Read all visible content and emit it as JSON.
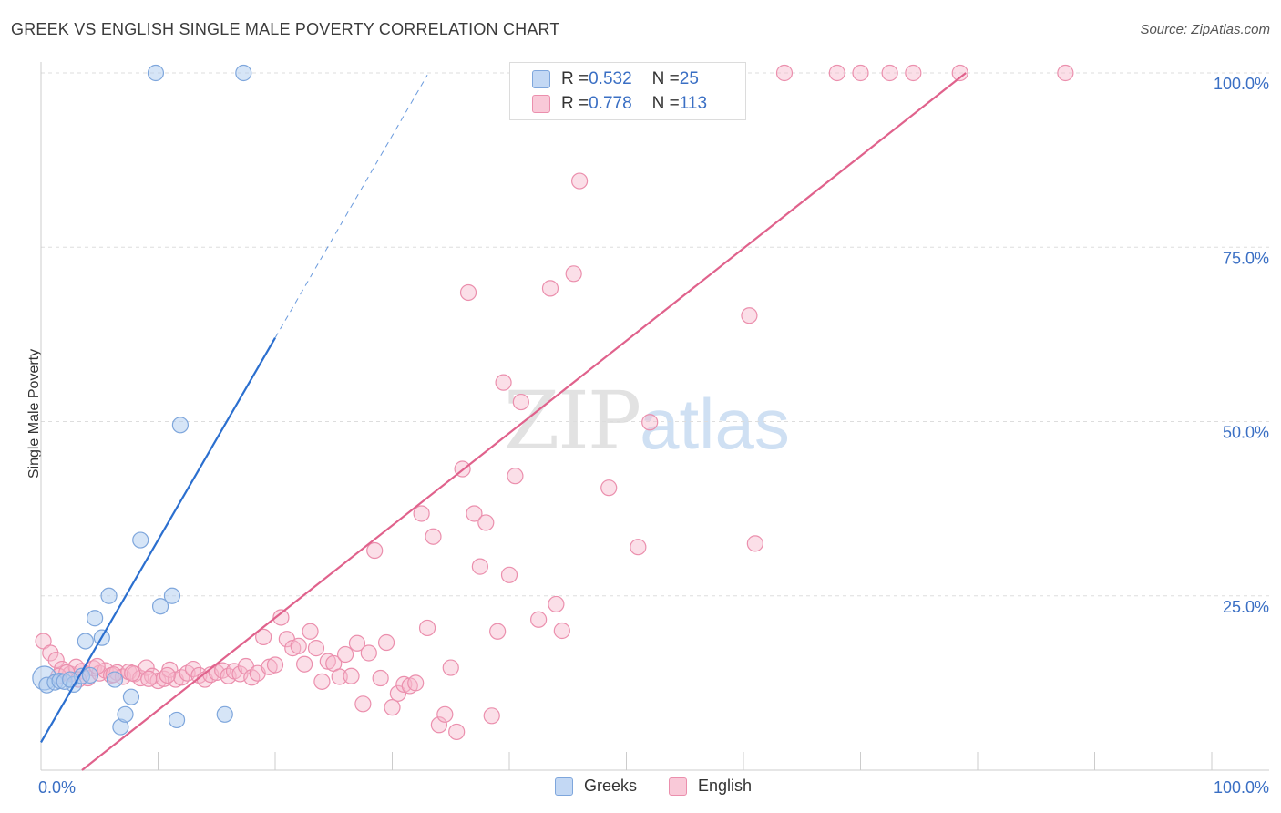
{
  "title": "GREEK VS ENGLISH SINGLE MALE POVERTY CORRELATION CHART",
  "source": "Source: ZipAtlas.com",
  "legend_top": {
    "rows": [
      {
        "r_label": "R = ",
        "r_value": "0.532",
        "n_label": "N = ",
        "n_value": "25"
      },
      {
        "r_label": "R = ",
        "r_value": "0.778",
        "n_label": "N = ",
        "n_value": "113"
      }
    ]
  },
  "legend_bottom": [
    "Greeks",
    "English"
  ],
  "watermark": {
    "zip": "ZIP",
    "atlas": "atlas"
  },
  "colors": {
    "greeks_fill": "#aecbf0",
    "greeks_stroke": "#7ea6dc",
    "greeks_line": "#2b6fcf",
    "english_fill": "#f6b7cb",
    "english_stroke": "#eb8fad",
    "english_line": "#e0628c",
    "tick_label": "#3a6fc4",
    "grid": "#dddddd"
  },
  "chart_data": {
    "type": "scatter",
    "title": "GREEK VS ENGLISH SINGLE MALE POVERTY CORRELATION CHART",
    "xlabel": "",
    "ylabel": "Single Male Poverty",
    "xlim": [
      0,
      100
    ],
    "ylim": [
      0,
      100
    ],
    "x_tick_labels": [
      "0.0%",
      "100.0%"
    ],
    "y_tick_labels": [
      "25.0%",
      "50.0%",
      "75.0%",
      "100.0%"
    ],
    "y_ticks": [
      25,
      50,
      75,
      100
    ],
    "grid": true,
    "legend_placement": "top-center and bottom-center",
    "series": [
      {
        "name": "Greeks",
        "R": 0.532,
        "N": 25,
        "trend": {
          "x1": 0,
          "y1": 4,
          "x2": 20,
          "y2": 62,
          "dash_to_x": 33
        },
        "points": [
          [
            0.3,
            13.2
          ],
          [
            0.5,
            12.2
          ],
          [
            1.2,
            12.6
          ],
          [
            1.6,
            12.8
          ],
          [
            2.0,
            12.7
          ],
          [
            2.8,
            12.3
          ],
          [
            3.5,
            13.5
          ],
          [
            3.8,
            18.5
          ],
          [
            4.2,
            13.6
          ],
          [
            4.6,
            21.8
          ],
          [
            5.2,
            19.0
          ],
          [
            5.8,
            25.0
          ],
          [
            6.3,
            13.0
          ],
          [
            6.8,
            6.2
          ],
          [
            7.2,
            8.0
          ],
          [
            7.7,
            10.5
          ],
          [
            8.5,
            33.0
          ],
          [
            9.8,
            100
          ],
          [
            10.2,
            23.5
          ],
          [
            11.2,
            25.0
          ],
          [
            11.6,
            7.2
          ],
          [
            11.9,
            49.5
          ],
          [
            15.7,
            8.0
          ],
          [
            17.3,
            100
          ],
          [
            2.5,
            13.0
          ]
        ]
      },
      {
        "name": "English",
        "R": 0.778,
        "N": 113,
        "trend": {
          "x1": 3.5,
          "y1": 0,
          "x2": 79,
          "y2": 100
        },
        "points": [
          [
            0.2,
            18.5
          ],
          [
            0.8,
            16.8
          ],
          [
            1.3,
            15.8
          ],
          [
            1.8,
            14.5
          ],
          [
            2.5,
            13.8
          ],
          [
            3.0,
            14.8
          ],
          [
            3.5,
            14.2
          ],
          [
            4.0,
            13.2
          ],
          [
            4.5,
            14.6
          ],
          [
            5.0,
            13.9
          ],
          [
            5.5,
            14.3
          ],
          [
            6.0,
            13.6
          ],
          [
            6.5,
            14.0
          ],
          [
            7.0,
            13.4
          ],
          [
            7.5,
            14.1
          ],
          [
            8.0,
            13.8
          ],
          [
            8.5,
            13.2
          ],
          [
            9.0,
            14.7
          ],
          [
            9.5,
            13.5
          ],
          [
            10.0,
            12.8
          ],
          [
            10.5,
            13.1
          ],
          [
            11.0,
            14.4
          ],
          [
            11.5,
            13.0
          ],
          [
            12.0,
            13.3
          ],
          [
            12.5,
            13.9
          ],
          [
            13.0,
            14.5
          ],
          [
            13.5,
            13.6
          ],
          [
            14.0,
            13.0
          ],
          [
            14.5,
            13.7
          ],
          [
            15.0,
            14.0
          ],
          [
            15.5,
            14.3
          ],
          [
            16.0,
            13.5
          ],
          [
            16.5,
            14.2
          ],
          [
            17.0,
            13.8
          ],
          [
            17.5,
            14.9
          ],
          [
            18.0,
            13.3
          ],
          [
            18.5,
            13.9
          ],
          [
            19.0,
            19.1
          ],
          [
            19.5,
            14.8
          ],
          [
            20.0,
            15.1
          ],
          [
            20.5,
            21.9
          ],
          [
            21.0,
            18.8
          ],
          [
            21.5,
            17.5
          ],
          [
            22.0,
            17.8
          ],
          [
            22.5,
            15.2
          ],
          [
            23.0,
            19.9
          ],
          [
            23.5,
            17.5
          ],
          [
            24.0,
            12.7
          ],
          [
            24.5,
            15.6
          ],
          [
            25.0,
            15.3
          ],
          [
            25.5,
            13.4
          ],
          [
            26.0,
            16.6
          ],
          [
            26.5,
            13.5
          ],
          [
            27.0,
            18.2
          ],
          [
            27.5,
            9.5
          ],
          [
            28.0,
            16.8
          ],
          [
            28.5,
            31.5
          ],
          [
            29.0,
            13.2
          ],
          [
            29.5,
            18.3
          ],
          [
            30.0,
            9.0
          ],
          [
            30.5,
            11.0
          ],
          [
            31.0,
            12.3
          ],
          [
            31.5,
            12.1
          ],
          [
            32.0,
            12.5
          ],
          [
            32.5,
            36.8
          ],
          [
            33.0,
            20.4
          ],
          [
            33.5,
            33.5
          ],
          [
            34.0,
            6.5
          ],
          [
            34.5,
            8.0
          ],
          [
            35.0,
            14.7
          ],
          [
            35.5,
            5.5
          ],
          [
            36.0,
            43.2
          ],
          [
            36.5,
            68.5
          ],
          [
            37.0,
            36.8
          ],
          [
            37.5,
            29.2
          ],
          [
            38.0,
            35.5
          ],
          [
            38.5,
            7.8
          ],
          [
            39.0,
            19.9
          ],
          [
            39.5,
            55.6
          ],
          [
            40.0,
            28.0
          ],
          [
            40.5,
            42.2
          ],
          [
            41.0,
            52.8
          ],
          [
            41.5,
            100
          ],
          [
            42.5,
            21.6
          ],
          [
            43.5,
            69.1
          ],
          [
            44.0,
            23.8
          ],
          [
            44.5,
            20.0
          ],
          [
            45.5,
            71.2
          ],
          [
            46.0,
            84.5
          ],
          [
            47.5,
            100
          ],
          [
            48.5,
            40.5
          ],
          [
            50.5,
            100
          ],
          [
            51.0,
            32.0
          ],
          [
            52.0,
            49.9
          ],
          [
            54.5,
            100
          ],
          [
            55.5,
            100
          ],
          [
            60.5,
            65.2
          ],
          [
            61.0,
            32.5
          ],
          [
            63.5,
            100
          ],
          [
            68.0,
            100
          ],
          [
            70.0,
            100
          ],
          [
            72.5,
            100
          ],
          [
            74.5,
            100
          ],
          [
            78.5,
            100
          ],
          [
            87.5,
            100
          ],
          [
            1.5,
            13.5
          ],
          [
            2.2,
            14.0
          ],
          [
            3.2,
            13.0
          ],
          [
            4.8,
            14.9
          ],
          [
            6.2,
            13.7
          ],
          [
            7.8,
            13.9
          ],
          [
            9.2,
            13.1
          ],
          [
            10.8,
            13.6
          ]
        ]
      }
    ]
  }
}
